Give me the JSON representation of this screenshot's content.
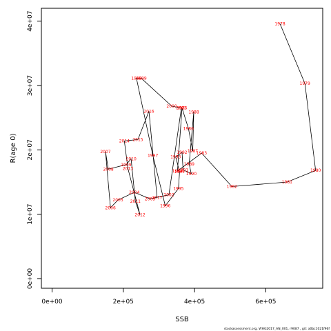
{
  "chart_data": {
    "type": "scatter",
    "xlabel": "SSB",
    "ylabel": "R(age 0)",
    "xlim": [
      -30000,
      760000
    ],
    "ylim": [
      -1500000,
      42000000
    ],
    "x_ticks": [
      {
        "value": 0,
        "label": "0e+00"
      },
      {
        "value": 200000,
        "label": "2e+05"
      },
      {
        "value": 400000,
        "label": "4e+05"
      },
      {
        "value": 600000,
        "label": "6e+05"
      }
    ],
    "y_ticks": [
      {
        "value": 0,
        "label": "0e+00"
      },
      {
        "value": 10000000,
        "label": "1e+07"
      },
      {
        "value": 20000000,
        "label": "2e+07"
      },
      {
        "value": 30000000,
        "label": "3e+07"
      },
      {
        "value": 40000000,
        "label": "4e+07"
      }
    ],
    "line_color": "#000000",
    "label_color": "#ff0000",
    "footnote": "stockassessment.org, WHG2017_AN_001, r9087 , git: a0bc1021f96f",
    "points": [
      {
        "year": "1978",
        "x": 640000,
        "y": 39600000
      },
      {
        "year": "1979",
        "x": 710000,
        "y": 30300000
      },
      {
        "year": "1980",
        "x": 740000,
        "y": 16800000
      },
      {
        "year": "1981",
        "x": 660000,
        "y": 15000000
      },
      {
        "year": "1982",
        "x": 505000,
        "y": 14300000
      },
      {
        "year": "1983",
        "x": 420000,
        "y": 19500000
      },
      {
        "year": "1984",
        "x": 352000,
        "y": 16700000
      },
      {
        "year": "1985",
        "x": 365000,
        "y": 26500000
      },
      {
        "year": "1986",
        "x": 383000,
        "y": 23300000
      },
      {
        "year": "1987",
        "x": 395000,
        "y": 19800000
      },
      {
        "year": "1988",
        "x": 398000,
        "y": 25900000
      },
      {
        "year": "1989",
        "x": 385000,
        "y": 17800000
      },
      {
        "year": "1990",
        "x": 391000,
        "y": 16300000
      },
      {
        "year": "1991",
        "x": 368000,
        "y": 16900000
      },
      {
        "year": "1992",
        "x": 365000,
        "y": 19600000
      },
      {
        "year": "1993",
        "x": 347000,
        "y": 18900000
      },
      {
        "year": "1994",
        "x": 358000,
        "y": 16600000
      },
      {
        "year": "1995",
        "x": 355000,
        "y": 14000000
      },
      {
        "year": "1996",
        "x": 318000,
        "y": 11300000
      },
      {
        "year": "1997",
        "x": 283000,
        "y": 19100000
      },
      {
        "year": "1998",
        "x": 237000,
        "y": 31100000
      },
      {
        "year": "1999",
        "x": 251000,
        "y": 31100000
      },
      {
        "year": "2000",
        "x": 336000,
        "y": 26800000
      },
      {
        "year": "2001",
        "x": 363000,
        "y": 26500000
      },
      {
        "year": "2002",
        "x": 328000,
        "y": 13000000
      },
      {
        "year": "2003",
        "x": 275000,
        "y": 12400000
      },
      {
        "year": "2004",
        "x": 231000,
        "y": 13400000
      },
      {
        "year": "2005",
        "x": 185000,
        "y": 12200000
      },
      {
        "year": "2006",
        "x": 164000,
        "y": 11000000
      },
      {
        "year": "2007",
        "x": 150000,
        "y": 19700000
      },
      {
        "year": "2008",
        "x": 158000,
        "y": 17000000
      },
      {
        "year": "2009",
        "x": 208000,
        "y": 17700000
      },
      {
        "year": "2010",
        "x": 222000,
        "y": 18600000
      },
      {
        "year": "2011",
        "x": 234000,
        "y": 12000000
      },
      {
        "year": "2012",
        "x": 247000,
        "y": 9900000
      },
      {
        "year": "2013",
        "x": 213000,
        "y": 17100000
      },
      {
        "year": "2014",
        "x": 203000,
        "y": 21400000
      },
      {
        "year": "2015",
        "x": 241000,
        "y": 21600000
      },
      {
        "year": "2016",
        "x": 272000,
        "y": 26000000
      },
      {
        "year": "2017",
        "x": 295000,
        "y": 12600000
      }
    ]
  }
}
